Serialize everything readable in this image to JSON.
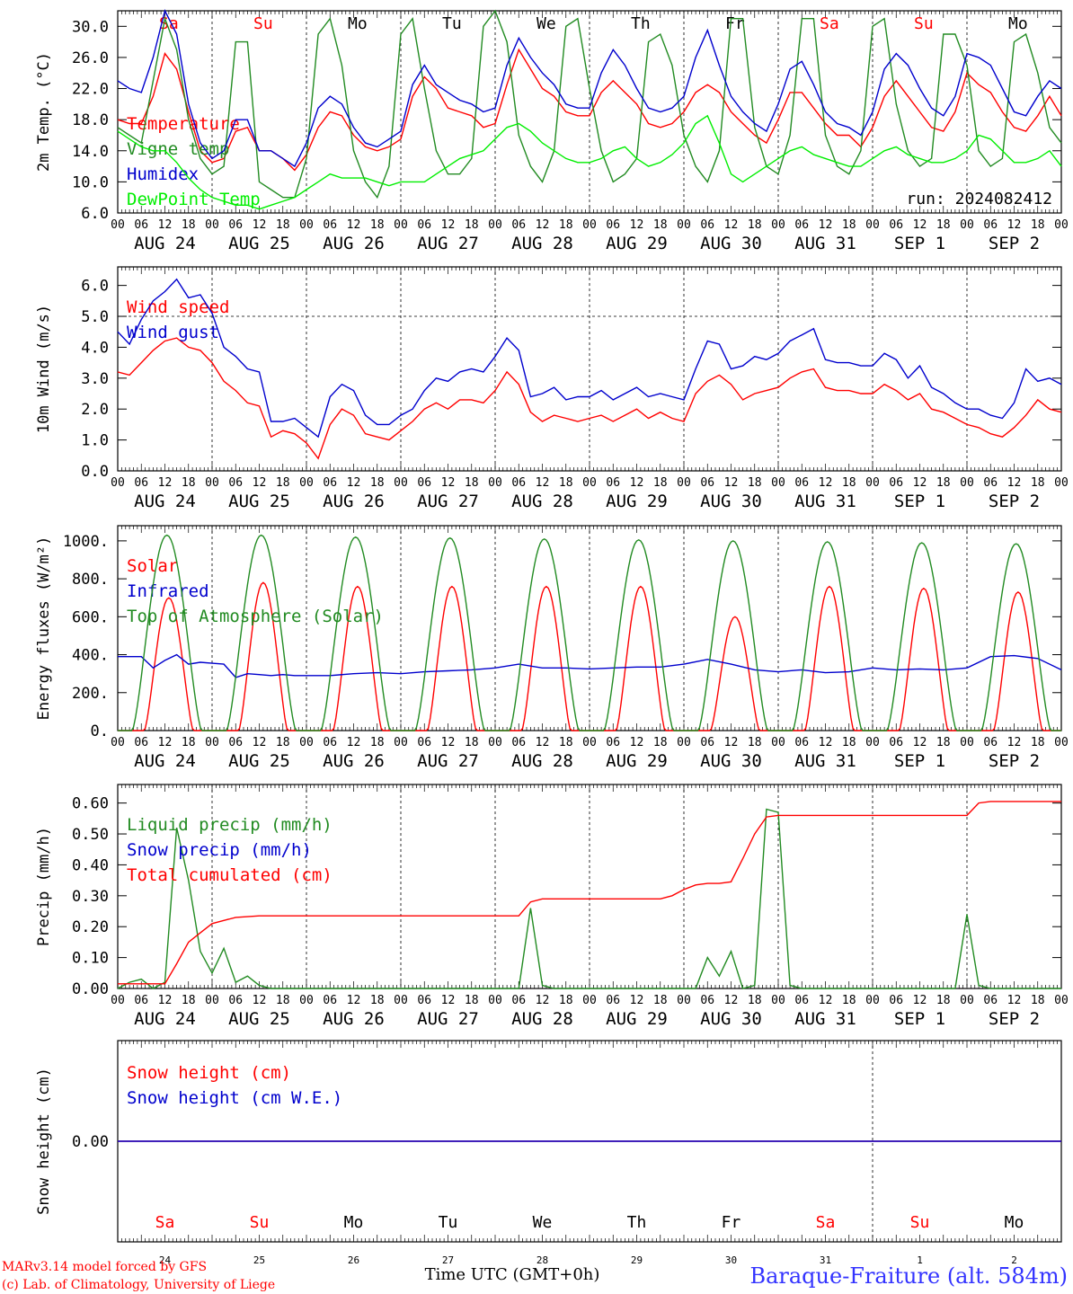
{
  "days": {
    "weekday_labels": [
      "Sa",
      "Su",
      "Mo",
      "Tu",
      "We",
      "Th",
      "Fr",
      "Sa",
      "Su",
      "Mo"
    ],
    "weekend_color": "#ff0000",
    "weekday_color": "#000000",
    "hour_ticks": [
      "00",
      "06",
      "12",
      "18"
    ],
    "date_labels": [
      "AUG 24",
      "AUG 25",
      "AUG 26",
      "AUG 27",
      "AUG 28",
      "AUG 29",
      "AUG 30",
      "AUG 31",
      "SEP  1",
      "SEP  2"
    ],
    "bottom_day_numbers": [
      "24",
      "25",
      "26",
      "27",
      "28",
      "29",
      "30",
      "31",
      "1",
      "2"
    ],
    "bottom_weekday_labels": [
      "Sa",
      "Su",
      "Mo",
      "Tu",
      "We",
      "Th",
      "Fr",
      "Sa",
      "Su",
      "Mo"
    ]
  },
  "footer": {
    "model_line": "MARv3.14 model forced by GFS",
    "credit_line": "(c) Lab. of Climatology, University of Liege",
    "time_label": "Time UTC (GMT+0h)",
    "station": "Baraque-Fraiture (alt. 584m)",
    "station_color": "#3333ff",
    "credit_color": "#ff0000"
  },
  "chart_data": [
    {
      "type": "line",
      "ylabel": "2m Temp. (°C)",
      "ylim": [
        6,
        32
      ],
      "yticks": [
        "6.0",
        "10.0",
        "14.0",
        "18.0",
        "22.0",
        "26.0",
        "30.0"
      ],
      "annotation": "run: 2024082412",
      "x_unit": "hours since 2024-08-24 00 UTC",
      "x": [
        0,
        3,
        6,
        9,
        12,
        15,
        18,
        21,
        24,
        27,
        30,
        33,
        36,
        39,
        42,
        45,
        48,
        51,
        54,
        57,
        60,
        63,
        66,
        69,
        72,
        75,
        78,
        81,
        84,
        87,
        90,
        93,
        96,
        99,
        102,
        105,
        108,
        111,
        114,
        117,
        120,
        123,
        126,
        129,
        132,
        135,
        138,
        141,
        144,
        147,
        150,
        153,
        156,
        159,
        162,
        165,
        168,
        171,
        174,
        177,
        180,
        183,
        186,
        189,
        192,
        195,
        198,
        201,
        204,
        207,
        210,
        213,
        216,
        219,
        222,
        225,
        228,
        231,
        234,
        237,
        240
      ],
      "series": [
        {
          "name": "Temperature",
          "color": "#ff0000",
          "values": [
            18,
            17.5,
            17.5,
            21,
            26.5,
            24.5,
            19,
            14,
            12.5,
            13,
            16.5,
            17,
            14,
            14,
            13,
            11.5,
            13.5,
            17,
            19,
            18.5,
            16,
            14.5,
            14,
            14.5,
            15.5,
            21,
            23.5,
            22,
            19.5,
            19,
            18.5,
            17,
            17.5,
            22.5,
            27,
            24.5,
            22,
            21,
            19,
            18.5,
            18.5,
            21.5,
            23,
            21.5,
            20,
            17.5,
            17,
            17.5,
            19,
            21.5,
            22.5,
            21.5,
            19,
            17.5,
            16,
            15,
            18,
            21.5,
            21.5,
            19.5,
            17.5,
            16,
            16,
            14.5,
            17,
            21,
            23,
            21,
            19,
            17,
            16.5,
            19,
            24,
            22.5,
            21.5,
            19,
            17,
            16.5,
            18.5,
            21,
            18.5
          ]
        },
        {
          "name": "Vigne temp",
          "color": "#228b22",
          "values": [
            17,
            16,
            15,
            23,
            31,
            27,
            18,
            13,
            11,
            12,
            28,
            28,
            10,
            9,
            8,
            8,
            13,
            29,
            31,
            25,
            14,
            10,
            8,
            12,
            29,
            31,
            22,
            14,
            11,
            11,
            13,
            30,
            32,
            28,
            16,
            12,
            10,
            14,
            30,
            31,
            22,
            14,
            10,
            11,
            13,
            28,
            29,
            25,
            16,
            12,
            10,
            14,
            31,
            31,
            17,
            12,
            11,
            16,
            31,
            31,
            16,
            12,
            11,
            14,
            30,
            31,
            20,
            14,
            12,
            13,
            29,
            29,
            25,
            14,
            12,
            13,
            28,
            29,
            24,
            17,
            15
          ]
        },
        {
          "name": "Humidex",
          "color": "#0000cd",
          "values": [
            23,
            22,
            21.5,
            26,
            32,
            29,
            20,
            15,
            13,
            14,
            18,
            18,
            14,
            14,
            13,
            12,
            15,
            19.5,
            21,
            20,
            17,
            15,
            14.5,
            15.5,
            16.5,
            22.5,
            25,
            22.5,
            21.5,
            20.5,
            20,
            19,
            19.5,
            25,
            28.5,
            26,
            24,
            22.5,
            20,
            19.5,
            19.5,
            24,
            27,
            25,
            22,
            19.5,
            19,
            19.5,
            21,
            26,
            29.5,
            25,
            21,
            19,
            17.5,
            16.5,
            20,
            24.5,
            25.5,
            22.5,
            19,
            17.5,
            17,
            16,
            19,
            24.5,
            26.5,
            25,
            22,
            19.5,
            18.5,
            21,
            26.5,
            26,
            25,
            22,
            19,
            18.5,
            21,
            23,
            22
          ]
        },
        {
          "name": "DewPoint Temp",
          "color": "#00ee00",
          "values": [
            16.5,
            15.5,
            14.5,
            14,
            14,
            12.5,
            10.5,
            9,
            8,
            7.5,
            7,
            7,
            6.5,
            7,
            7.5,
            8,
            9,
            10,
            11,
            10.5,
            10.5,
            10.5,
            10,
            9.5,
            10,
            10,
            10,
            11,
            12,
            13,
            13.5,
            14,
            15.5,
            17,
            17.5,
            16.5,
            15,
            14,
            13,
            12.5,
            12.5,
            13,
            14,
            14.5,
            13,
            12,
            12.5,
            13.5,
            15,
            17.5,
            18.5,
            15,
            11,
            10,
            11,
            12,
            13,
            14,
            14.5,
            13.5,
            13,
            12.5,
            12,
            12,
            13,
            14,
            14.5,
            13.5,
            13,
            12.5,
            12.5,
            13,
            14,
            16,
            15.5,
            14,
            12.5,
            12.5,
            13,
            14,
            12
          ]
        }
      ]
    },
    {
      "type": "line",
      "ylabel": "10m Wind (m/s)",
      "ylim": [
        0,
        6.6
      ],
      "yticks": [
        "0.0",
        "1.0",
        "2.0",
        "3.0",
        "4.0",
        "5.0",
        "6.0"
      ],
      "x_unit": "hours since 2024-08-24 00 UTC",
      "x": [
        0,
        3,
        6,
        9,
        12,
        15,
        18,
        21,
        24,
        27,
        30,
        33,
        36,
        39,
        42,
        45,
        48,
        51,
        54,
        57,
        60,
        63,
        66,
        69,
        72,
        75,
        78,
        81,
        84,
        87,
        90,
        93,
        96,
        99,
        102,
        105,
        108,
        111,
        114,
        117,
        120,
        123,
        126,
        129,
        132,
        135,
        138,
        141,
        144,
        147,
        150,
        153,
        156,
        159,
        162,
        165,
        168,
        171,
        174,
        177,
        180,
        183,
        186,
        189,
        192,
        195,
        198,
        201,
        204,
        207,
        210,
        213,
        216,
        219,
        222,
        225,
        228,
        231,
        234,
        237,
        240
      ],
      "series": [
        {
          "name": "Wind speed",
          "color": "#ff0000",
          "values": [
            3.2,
            3.1,
            3.5,
            3.9,
            4.2,
            4.3,
            4.0,
            3.9,
            3.5,
            2.9,
            2.6,
            2.2,
            2.1,
            1.1,
            1.3,
            1.2,
            0.9,
            0.4,
            1.5,
            2.0,
            1.8,
            1.2,
            1.1,
            1.0,
            1.3,
            1.6,
            2.0,
            2.2,
            2.0,
            2.3,
            2.3,
            2.2,
            2.6,
            3.2,
            2.8,
            1.9,
            1.6,
            1.8,
            1.7,
            1.6,
            1.7,
            1.8,
            1.6,
            1.8,
            2.0,
            1.7,
            1.9,
            1.7,
            1.6,
            2.5,
            2.9,
            3.1,
            2.8,
            2.3,
            2.5,
            2.6,
            2.7,
            3.0,
            3.2,
            3.3,
            2.7,
            2.6,
            2.6,
            2.5,
            2.5,
            2.8,
            2.6,
            2.3,
            2.5,
            2.0,
            1.9,
            1.7,
            1.5,
            1.4,
            1.2,
            1.1,
            1.4,
            1.8,
            2.3,
            2.0,
            1.9
          ]
        },
        {
          "name": "Wind gust",
          "color": "#0000cd",
          "values": [
            4.5,
            4.1,
            4.9,
            5.5,
            5.8,
            6.2,
            5.6,
            5.7,
            5.1,
            4.0,
            3.7,
            3.3,
            3.2,
            1.6,
            1.6,
            1.7,
            1.4,
            1.1,
            2.4,
            2.8,
            2.6,
            1.8,
            1.5,
            1.5,
            1.8,
            2.0,
            2.6,
            3.0,
            2.9,
            3.2,
            3.3,
            3.2,
            3.7,
            4.3,
            3.9,
            2.4,
            2.5,
            2.7,
            2.3,
            2.4,
            2.4,
            2.6,
            2.3,
            2.5,
            2.7,
            2.4,
            2.5,
            2.4,
            2.3,
            3.3,
            4.2,
            4.1,
            3.3,
            3.4,
            3.7,
            3.6,
            3.8,
            4.2,
            4.4,
            4.6,
            3.6,
            3.5,
            3.5,
            3.4,
            3.4,
            3.8,
            3.6,
            3.0,
            3.4,
            2.7,
            2.5,
            2.2,
            2.0,
            2.0,
            1.8,
            1.7,
            2.2,
            3.3,
            2.9,
            3.0,
            2.8
          ]
        }
      ],
      "reference_line": 5.0
    },
    {
      "type": "line",
      "ylabel": "Energy fluxes (W/m²)",
      "ylim": [
        0,
        1080
      ],
      "yticks": [
        "0.",
        "200.",
        "400.",
        "600.",
        "800.",
        "1000."
      ],
      "x_unit": "hours since 2024-08-24 00 UTC",
      "series": [
        {
          "name": "Solar",
          "color": "#ff0000",
          "peaks": [
            700,
            780,
            760,
            760,
            760,
            760,
            600,
            760,
            750,
            730
          ]
        },
        {
          "name": "Infrared",
          "color": "#0000cd",
          "x": [
            0,
            6,
            9,
            12,
            15,
            18,
            21,
            24,
            27,
            30,
            33,
            36,
            39,
            42,
            45,
            48,
            54,
            60,
            66,
            72,
            78,
            84,
            90,
            96,
            102,
            108,
            114,
            120,
            126,
            132,
            138,
            144,
            150,
            156,
            162,
            168,
            174,
            180,
            186,
            192,
            198,
            204,
            210,
            216,
            222,
            228,
            234,
            240
          ],
          "values": [
            390,
            390,
            330,
            370,
            400,
            350,
            360,
            355,
            350,
            280,
            300,
            295,
            290,
            295,
            290,
            290,
            290,
            300,
            305,
            300,
            310,
            315,
            320,
            330,
            350,
            330,
            330,
            325,
            330,
            335,
            335,
            350,
            375,
            350,
            320,
            310,
            320,
            305,
            310,
            330,
            320,
            325,
            320,
            330,
            390,
            395,
            380,
            320
          ]
        },
        {
          "name": "Top of Atmosphere (Solar)",
          "color": "#228b22",
          "peaks": [
            1030,
            1030,
            1020,
            1015,
            1010,
            1005,
            1000,
            995,
            990,
            985
          ]
        }
      ]
    },
    {
      "type": "line",
      "ylabel": "Precip (mm/h)",
      "ylim": [
        0,
        0.66
      ],
      "yticks": [
        "0.00",
        "0.10",
        "0.20",
        "0.30",
        "0.40",
        "0.50",
        "0.60"
      ],
      "x_unit": "hours since 2024-08-24 00 UTC",
      "series": [
        {
          "name": "Liquid precip (mm/h)",
          "color": "#228b22",
          "x": [
            0,
            3,
            6,
            9,
            12,
            15,
            18,
            21,
            24,
            27,
            30,
            33,
            36,
            39,
            102,
            105,
            108,
            111,
            114,
            147,
            150,
            153,
            156,
            159,
            162,
            165,
            168,
            171,
            174,
            213,
            216,
            219,
            222,
            225,
            240
          ],
          "values": [
            0,
            0.02,
            0.03,
            0,
            0.02,
            0.52,
            0.35,
            0.12,
            0.05,
            0.13,
            0.02,
            0.04,
            0.01,
            0,
            0,
            0.26,
            0.01,
            0,
            0,
            0,
            0.1,
            0.04,
            0.12,
            0.0,
            0.01,
            0.58,
            0.57,
            0.01,
            0,
            0,
            0.24,
            0.01,
            0,
            0,
            0
          ]
        },
        {
          "name": "Snow precip (mm/h)",
          "color": "#0000cd",
          "values": [
            0,
            0
          ]
        },
        {
          "name": "Total cumulated (cm)",
          "color": "#ff0000",
          "x": [
            0,
            12,
            15,
            18,
            21,
            24,
            27,
            30,
            36,
            102,
            105,
            108,
            138,
            141,
            144,
            147,
            150,
            153,
            156,
            159,
            162,
            165,
            168,
            171,
            216,
            219,
            222,
            240
          ],
          "values": [
            0.015,
            0.015,
            0.08,
            0.15,
            0.18,
            0.21,
            0.22,
            0.23,
            0.235,
            0.235,
            0.28,
            0.29,
            0.29,
            0.3,
            0.32,
            0.335,
            0.34,
            0.34,
            0.345,
            0.42,
            0.5,
            0.555,
            0.56,
            0.56,
            0.56,
            0.6,
            0.605,
            0.605
          ]
        }
      ]
    },
    {
      "type": "line",
      "ylabel": "Snow height (cm)",
      "ylim": [
        -1,
        1
      ],
      "yticks": [
        "0.00"
      ],
      "x_unit": "hours since 2024-08-24 00 UTC",
      "series": [
        {
          "name": "Snow height (cm)",
          "color": "#ff0000",
          "x": [
            0,
            240
          ],
          "values": [
            0,
            0
          ]
        },
        {
          "name": "Snow height (cm W.E.)",
          "color": "#0000cd",
          "x": [
            0,
            240
          ],
          "values": [
            0,
            0
          ]
        }
      ]
    }
  ]
}
